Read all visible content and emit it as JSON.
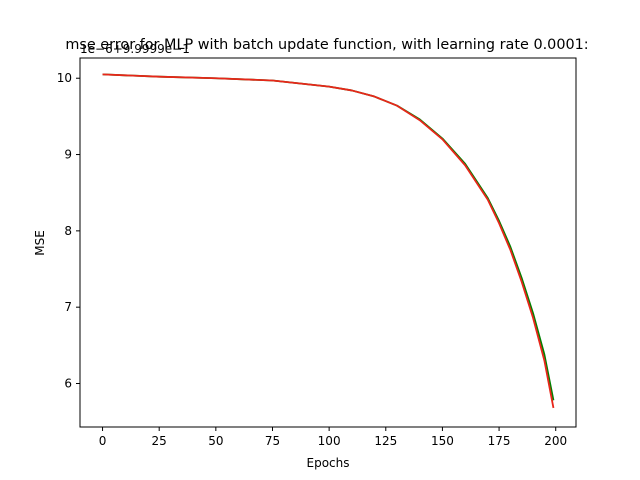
{
  "chart_data": {
    "type": "line",
    "title": "mse error for MLP with batch update function, with learning rate 0.0001:",
    "xlabel": "Epochs",
    "ylabel": "MSE",
    "y_offset_text": "1e−6+9.9999e−1",
    "xlim": [
      -9.95,
      208.95
    ],
    "ylim": [
      5.43,
      10.265
    ],
    "xticks": [
      0,
      25,
      50,
      75,
      100,
      125,
      150,
      175,
      200
    ],
    "yticks": [
      6,
      7,
      8,
      9,
      10
    ],
    "grid": false,
    "legend": "none",
    "series": [
      {
        "color": "#008000",
        "x": [
          0,
          25,
          50,
          75,
          100,
          110,
          120,
          130,
          140,
          150,
          160,
          170,
          175,
          180,
          185,
          190,
          195,
          199
        ],
        "y": [
          10.05,
          10.02,
          10.0,
          9.97,
          9.89,
          9.84,
          9.76,
          9.64,
          9.46,
          9.21,
          8.88,
          8.43,
          8.13,
          7.79,
          7.38,
          6.92,
          6.38,
          5.78
        ]
      },
      {
        "color": "#e8261a",
        "x": [
          0,
          25,
          50,
          75,
          100,
          110,
          120,
          130,
          140,
          150,
          160,
          170,
          175,
          180,
          185,
          190,
          195,
          199
        ],
        "y": [
          10.05,
          10.02,
          10.0,
          9.97,
          9.89,
          9.84,
          9.76,
          9.64,
          9.45,
          9.2,
          8.86,
          8.41,
          8.1,
          7.75,
          7.33,
          6.86,
          6.3,
          5.68
        ]
      }
    ]
  }
}
